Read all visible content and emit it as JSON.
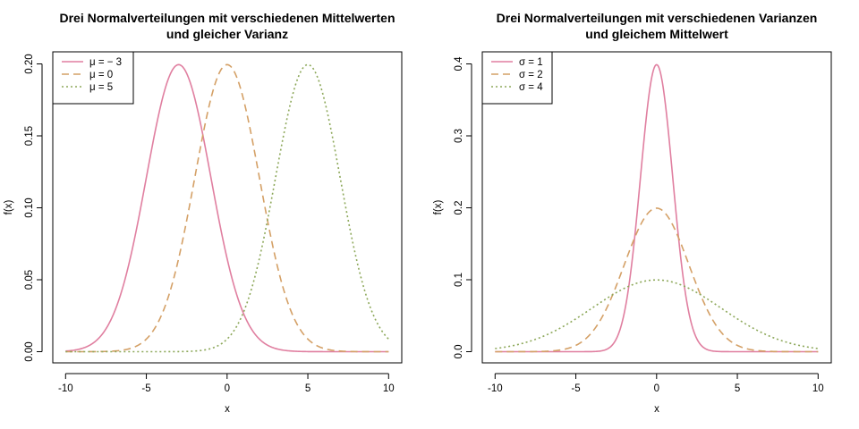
{
  "chart_data": [
    {
      "type": "line",
      "title": [
        "Drei Normalverteilungen mit verschiedenen Mittelwerten",
        "und gleicher Varianz"
      ],
      "xlabel": "x",
      "ylabel": "f(x)",
      "xlim": [
        -10,
        10
      ],
      "ylim": [
        0,
        0.2
      ],
      "xticks": [
        -10,
        -5,
        0,
        5,
        10
      ],
      "xtick_labels": [
        "-10",
        "-5",
        "0",
        "5",
        "10"
      ],
      "yticks": [
        0,
        0.05,
        0.1,
        0.15,
        0.2
      ],
      "ytick_labels": [
        "0.00",
        "0.05",
        "0.10",
        "0.15",
        "0.20"
      ],
      "legend_position": "top-left",
      "series": [
        {
          "label_symbol": "μ",
          "label_value": "− 3",
          "mu": -3,
          "sigma": 2,
          "color": "#E07FA0",
          "dash": "solid"
        },
        {
          "label_symbol": "μ",
          "label_value": "0",
          "mu": 0,
          "sigma": 2,
          "color": "#D4A066",
          "dash": "dashed"
        },
        {
          "label_symbol": "μ",
          "label_value": "5",
          "mu": 5,
          "sigma": 2,
          "color": "#8DA85A",
          "dash": "dotted"
        }
      ]
    },
    {
      "type": "line",
      "title": [
        "Drei Normalverteilungen mit verschiedenen Varianzen",
        "und gleichem Mittelwert"
      ],
      "xlabel": "x",
      "ylabel": "f(x)",
      "xlim": [
        -10,
        10
      ],
      "ylim": [
        0,
        0.4
      ],
      "xticks": [
        -10,
        -5,
        0,
        5,
        10
      ],
      "xtick_labels": [
        "-10",
        "-5",
        "0",
        "5",
        "10"
      ],
      "yticks": [
        0,
        0.1,
        0.2,
        0.3,
        0.4
      ],
      "ytick_labels": [
        "0.0",
        "0.1",
        "0.2",
        "0.3",
        "0.4"
      ],
      "legend_position": "top-left",
      "series": [
        {
          "label_symbol": "σ",
          "label_value": "1",
          "mu": 0,
          "sigma": 1,
          "color": "#E07FA0",
          "dash": "solid"
        },
        {
          "label_symbol": "σ",
          "label_value": "2",
          "mu": 0,
          "sigma": 2,
          "color": "#D4A066",
          "dash": "dashed"
        },
        {
          "label_symbol": "σ",
          "label_value": "4",
          "mu": 0,
          "sigma": 4,
          "color": "#8DA85A",
          "dash": "dotted"
        }
      ]
    }
  ]
}
